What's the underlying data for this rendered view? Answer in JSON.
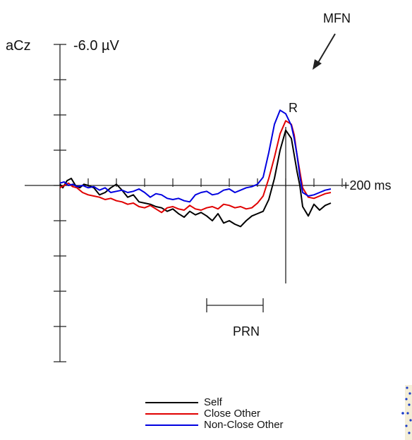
{
  "chart_data": {
    "type": "line",
    "channel_label": "aCz",
    "scale_label": "-6.0 µV",
    "time_label": "+200 ms",
    "y_axis": {
      "range_uv": [
        -6,
        2.5
      ],
      "tick_step_uv": 1,
      "negative_up": true
    },
    "x_axis": {
      "range_ms": [
        -800,
        200
      ],
      "tick_step_ms": 100,
      "response_marker_ms": 0
    },
    "annotations": {
      "response": "R",
      "mfn": "MFN",
      "prn": "PRN",
      "prn_window_ms": [
        -280,
        -80
      ]
    },
    "series": [
      {
        "name": "Self",
        "color": "#000000",
        "time_ms": [
          -800,
          -790,
          -775,
          -760,
          -745,
          -730,
          -715,
          -700,
          -680,
          -660,
          -640,
          -620,
          -600,
          -580,
          -560,
          -540,
          -520,
          -500,
          -480,
          -460,
          -440,
          -420,
          -400,
          -380,
          -360,
          -340,
          -320,
          -300,
          -280,
          -260,
          -240,
          -220,
          -200,
          -180,
          -160,
          -140,
          -120,
          -100,
          -80,
          -60,
          -40,
          -20,
          0,
          20,
          30,
          40,
          50,
          60,
          80,
          100,
          120,
          140,
          160
        ],
        "values_uv": [
          0.05,
          -0.1,
          0.2,
          0.3,
          0.0,
          -0.1,
          0.05,
          0.0,
          -0.1,
          -0.4,
          -0.3,
          -0.1,
          0.05,
          -0.2,
          -0.5,
          -0.4,
          -0.7,
          -0.75,
          -0.8,
          -0.9,
          -0.95,
          -1.1,
          -1.0,
          -1.2,
          -1.35,
          -1.1,
          -1.25,
          -1.15,
          -1.3,
          -1.5,
          -1.2,
          -1.6,
          -1.5,
          -1.65,
          -1.75,
          -1.5,
          -1.3,
          -1.2,
          -1.1,
          -0.6,
          0.3,
          1.5,
          2.35,
          2.0,
          1.3,
          0.6,
          0.0,
          -0.9,
          -1.3,
          -0.8,
          -1.05,
          -0.85,
          -0.75
        ]
      },
      {
        "name": "Close Other",
        "color": "#e00000",
        "time_ms": [
          -800,
          -785,
          -770,
          -755,
          -740,
          -720,
          -700,
          -680,
          -660,
          -640,
          -620,
          -600,
          -580,
          -560,
          -540,
          -520,
          -500,
          -480,
          -460,
          -440,
          -420,
          -400,
          -380,
          -360,
          -340,
          -320,
          -300,
          -280,
          -260,
          -240,
          -220,
          -200,
          -180,
          -160,
          -140,
          -120,
          -100,
          -80,
          -60,
          -40,
          -20,
          0,
          20,
          30,
          40,
          50,
          60,
          80,
          100,
          120,
          140,
          160
        ],
        "values_uv": [
          -0.1,
          0.0,
          0.1,
          -0.05,
          -0.1,
          -0.3,
          -0.4,
          -0.45,
          -0.5,
          -0.6,
          -0.55,
          -0.65,
          -0.7,
          -0.8,
          -0.75,
          -0.9,
          -0.95,
          -0.85,
          -1.0,
          -1.15,
          -0.95,
          -0.9,
          -1.0,
          -1.05,
          -0.85,
          -1.0,
          -1.05,
          -0.95,
          -0.9,
          -1.0,
          -0.8,
          -0.85,
          -0.95,
          -0.9,
          -1.0,
          -0.95,
          -0.75,
          -0.45,
          0.3,
          1.2,
          2.2,
          2.75,
          2.6,
          2.15,
          1.3,
          0.6,
          -0.1,
          -0.5,
          -0.55,
          -0.45,
          -0.35,
          -0.3
        ]
      },
      {
        "name": "Non-Close Other",
        "color": "#0000e0",
        "time_ms": [
          -800,
          -785,
          -770,
          -755,
          -740,
          -720,
          -700,
          -680,
          -660,
          -640,
          -620,
          -600,
          -580,
          -560,
          -540,
          -520,
          -500,
          -480,
          -460,
          -440,
          -420,
          -400,
          -380,
          -360,
          -340,
          -320,
          -300,
          -280,
          -260,
          -240,
          -220,
          -200,
          -180,
          -160,
          -140,
          -120,
          -100,
          -80,
          -60,
          -40,
          -20,
          0,
          20,
          30,
          40,
          50,
          60,
          80,
          100,
          120,
          140,
          160
        ],
        "values_uv": [
          0.1,
          0.15,
          0.0,
          0.05,
          -0.05,
          0.0,
          -0.1,
          -0.05,
          -0.2,
          -0.1,
          -0.3,
          -0.25,
          -0.2,
          -0.3,
          -0.25,
          -0.15,
          -0.3,
          -0.5,
          -0.35,
          -0.4,
          -0.55,
          -0.6,
          -0.55,
          -0.65,
          -0.7,
          -0.4,
          -0.3,
          -0.25,
          -0.4,
          -0.35,
          -0.2,
          -0.15,
          -0.3,
          -0.2,
          -0.1,
          -0.05,
          0.05,
          0.35,
          1.4,
          2.6,
          3.2,
          3.05,
          2.55,
          2.0,
          1.3,
          0.4,
          -0.3,
          -0.45,
          -0.4,
          -0.3,
          -0.2,
          -0.15
        ]
      }
    ],
    "legend": {
      "placement": "bottom-center"
    }
  }
}
